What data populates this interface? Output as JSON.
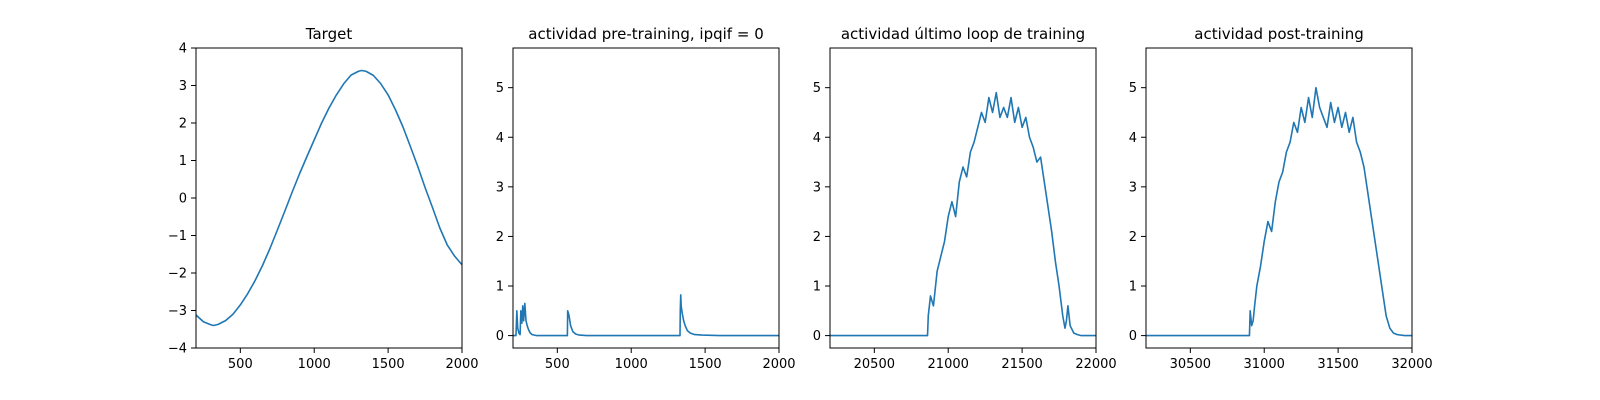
{
  "chart_data": [
    {
      "type": "line",
      "title": "Target",
      "xlabel": "",
      "ylabel": "",
      "xlim": [
        200,
        2000
      ],
      "ylim": [
        -4,
        4
      ],
      "xticks": [
        500,
        1000,
        1500,
        2000
      ],
      "yticks": [
        -4,
        -3,
        -2,
        -1,
        0,
        1,
        2,
        3,
        4
      ],
      "grid": false,
      "series": [
        {
          "color": "#1f77b4",
          "x": [
            200,
            250,
            300,
            320,
            350,
            400,
            450,
            500,
            550,
            600,
            650,
            700,
            750,
            800,
            850,
            900,
            950,
            1000,
            1050,
            1100,
            1150,
            1200,
            1250,
            1300,
            1320,
            1350,
            1400,
            1450,
            1500,
            1550,
            1600,
            1650,
            1700,
            1750,
            1800,
            1850,
            1900,
            1950,
            2000
          ],
          "y": [
            -3.12,
            -3.3,
            -3.38,
            -3.4,
            -3.37,
            -3.27,
            -3.1,
            -2.85,
            -2.55,
            -2.2,
            -1.8,
            -1.35,
            -0.86,
            -0.36,
            0.15,
            0.64,
            1.1,
            1.55,
            2.0,
            2.4,
            2.75,
            3.05,
            3.28,
            3.38,
            3.4,
            3.38,
            3.27,
            3.05,
            2.75,
            2.35,
            1.9,
            1.38,
            0.85,
            0.28,
            -0.25,
            -0.8,
            -1.25,
            -1.55,
            -1.78
          ]
        }
      ]
    },
    {
      "type": "line",
      "title": "actividad pre-training, ipqif = 0",
      "xlabel": "",
      "ylabel": "",
      "xlim": [
        200,
        2000
      ],
      "ylim": [
        -0.25,
        5.8
      ],
      "xticks": [
        500,
        1000,
        1500,
        2000
      ],
      "yticks": [
        0,
        1,
        2,
        3,
        4,
        5
      ],
      "grid": false,
      "series": [
        {
          "color": "#1f77b4",
          "x": [
            200,
            220,
            226,
            232,
            240,
            248,
            253,
            260,
            266,
            272,
            280,
            288,
            296,
            305,
            315,
            330,
            360,
            420,
            500,
            568,
            570,
            578,
            590,
            605,
            625,
            650,
            700,
            800,
            1000,
            1200,
            1330,
            1332,
            1335,
            1338,
            1345,
            1355,
            1365,
            1380,
            1400,
            1430,
            1480,
            1600,
            2000
          ],
          "y": [
            0,
            0,
            0.5,
            0.15,
            0.05,
            0.02,
            0.5,
            0.25,
            0.6,
            0.3,
            0.65,
            0.3,
            0.2,
            0.12,
            0.06,
            0.02,
            0,
            0,
            0,
            0,
            0.5,
            0.42,
            0.2,
            0.08,
            0.03,
            0.01,
            0,
            0,
            0,
            0,
            0,
            0.5,
            0.82,
            0.6,
            0.45,
            0.3,
            0.2,
            0.1,
            0.05,
            0.02,
            0.01,
            0,
            0
          ]
        }
      ]
    },
    {
      "type": "line",
      "title": "actividad último loop de training",
      "xlabel": "",
      "ylabel": "",
      "xlim": [
        20200,
        22000
      ],
      "ylim": [
        -0.25,
        5.8
      ],
      "xticks": [
        20500,
        21000,
        21500,
        22000
      ],
      "yticks": [
        0,
        1,
        2,
        3,
        4,
        5
      ],
      "grid": false,
      "series": [
        {
          "color": "#1f77b4",
          "x": [
            20200,
            20400,
            20600,
            20800,
            20860,
            20865,
            20880,
            20900,
            20925,
            20950,
            20975,
            21000,
            21025,
            21050,
            21075,
            21100,
            21125,
            21150,
            21175,
            21200,
            21225,
            21250,
            21275,
            21300,
            21325,
            21350,
            21375,
            21400,
            21425,
            21450,
            21475,
            21500,
            21525,
            21550,
            21575,
            21600,
            21625,
            21650,
            21675,
            21700,
            21725,
            21750,
            21775,
            21790,
            21800,
            21810,
            21825,
            21850,
            21875,
            21900,
            21950,
            22000
          ],
          "y": [
            0,
            0,
            0,
            0,
            0,
            0.4,
            0.8,
            0.6,
            1.3,
            1.6,
            1.9,
            2.4,
            2.7,
            2.4,
            3.1,
            3.4,
            3.2,
            3.7,
            3.9,
            4.2,
            4.5,
            4.3,
            4.8,
            4.5,
            4.9,
            4.4,
            4.6,
            4.4,
            4.8,
            4.3,
            4.6,
            4.2,
            4.4,
            4.0,
            3.8,
            3.5,
            3.6,
            3.1,
            2.6,
            2.1,
            1.5,
            1.0,
            0.4,
            0.15,
            0.3,
            0.6,
            0.2,
            0.05,
            0.02,
            0,
            0,
            0
          ]
        }
      ]
    },
    {
      "type": "line",
      "title": "actividad post-training",
      "xlabel": "",
      "ylabel": "",
      "xlim": [
        30200,
        32000
      ],
      "ylim": [
        -0.25,
        5.8
      ],
      "xticks": [
        30500,
        31000,
        31500,
        32000
      ],
      "yticks": [
        0,
        1,
        2,
        3,
        4,
        5
      ],
      "grid": false,
      "series": [
        {
          "color": "#1f77b4",
          "x": [
            30200,
            30500,
            30800,
            30900,
            30905,
            30915,
            30925,
            30935,
            30950,
            30975,
            31000,
            31025,
            31050,
            31075,
            31100,
            31125,
            31150,
            31175,
            31200,
            31225,
            31250,
            31275,
            31300,
            31325,
            31350,
            31375,
            31400,
            31425,
            31450,
            31475,
            31500,
            31525,
            31550,
            31575,
            31600,
            31625,
            31650,
            31675,
            31700,
            31725,
            31750,
            31775,
            31800,
            31825,
            31850,
            31875,
            31900,
            31950,
            32000
          ],
          "y": [
            0,
            0,
            0,
            0,
            0.5,
            0.2,
            0.3,
            0.6,
            1.0,
            1.4,
            1.9,
            2.3,
            2.1,
            2.7,
            3.1,
            3.3,
            3.7,
            3.9,
            4.3,
            4.1,
            4.6,
            4.3,
            4.8,
            4.4,
            5.0,
            4.6,
            4.4,
            4.2,
            4.7,
            4.3,
            4.6,
            4.2,
            4.5,
            4.1,
            4.4,
            3.9,
            3.7,
            3.4,
            2.9,
            2.4,
            1.9,
            1.4,
            0.9,
            0.4,
            0.15,
            0.05,
            0.02,
            0,
            0
          ]
        }
      ]
    }
  ]
}
